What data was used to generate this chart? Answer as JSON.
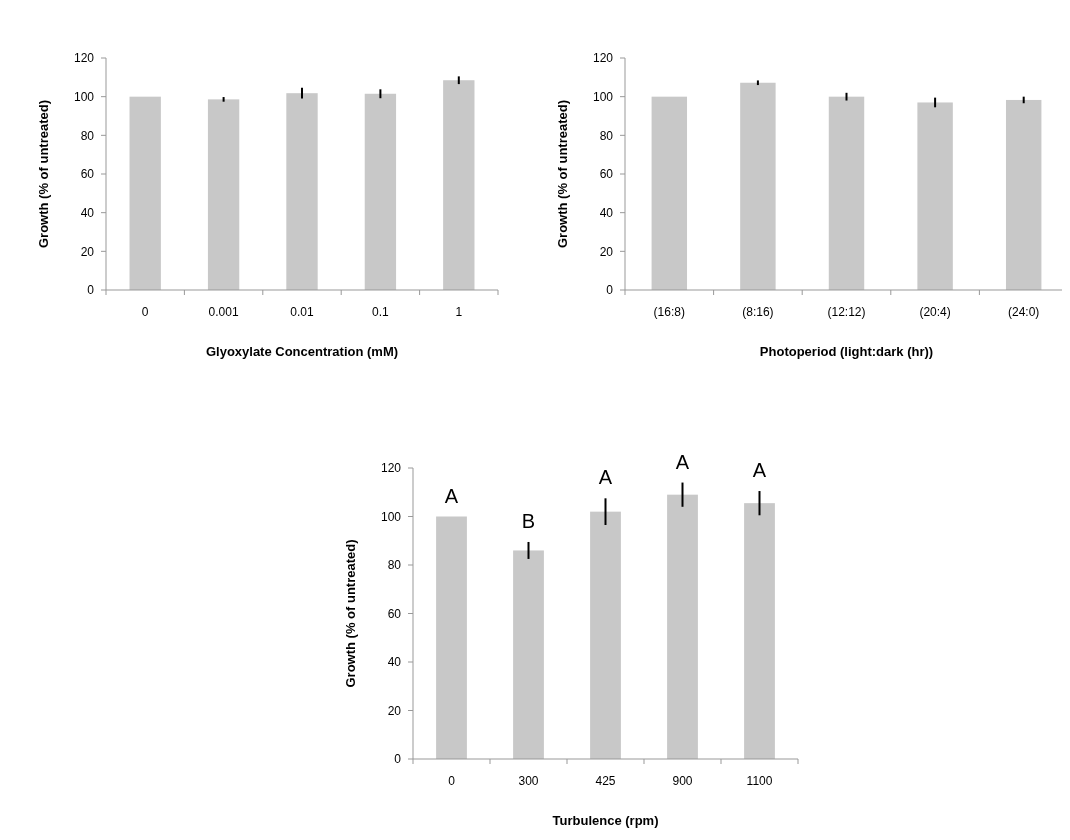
{
  "chart_data": [
    {
      "type": "bar",
      "xlabel": "Glyoxylate Concentration (mM)",
      "ylabel": "Growth (% of untreated)",
      "categories": [
        "0",
        "0.001",
        "0.01",
        "0.1",
        "1"
      ],
      "values": [
        100,
        98.6,
        101.8,
        101.5,
        108.5
      ],
      "errors": [
        null,
        1.2,
        2.8,
        2.3,
        2
      ],
      "color": "#c8c8c8",
      "ylim": [
        0,
        120
      ],
      "yticks": [
        0,
        20,
        40,
        60,
        80,
        100,
        120
      ]
    },
    {
      "type": "bar",
      "xlabel": "Photoperiod (light:dark (hr))",
      "ylabel": "Growth (% of untreated)",
      "categories": [
        "(16:8)",
        "(8:16)",
        "(12:12)",
        "(20:4)",
        "(24:0)"
      ],
      "values": [
        100,
        107.2,
        100,
        97,
        98.3
      ],
      "errors": [
        null,
        1.2,
        2,
        2.5,
        1.7
      ],
      "color": "#c8c8c8",
      "ylim": [
        0,
        120
      ],
      "yticks": [
        0,
        20,
        40,
        60,
        80,
        100,
        120
      ]
    },
    {
      "type": "bar",
      "xlabel": "Turbulence  (rpm)",
      "ylabel": "Growth (% of untreated)",
      "categories": [
        "0",
        "300",
        "425",
        "900",
        "1100"
      ],
      "values": [
        100,
        86,
        102,
        109,
        105.5
      ],
      "errors": [
        null,
        3.5,
        5.5,
        5,
        5
      ],
      "color": "#c8c8c8",
      "ylim": [
        0,
        120
      ],
      "yticks": [
        0,
        20,
        40,
        60,
        80,
        100,
        120
      ],
      "annotations": [
        "A",
        "B",
        "A",
        "A",
        "A"
      ]
    }
  ]
}
